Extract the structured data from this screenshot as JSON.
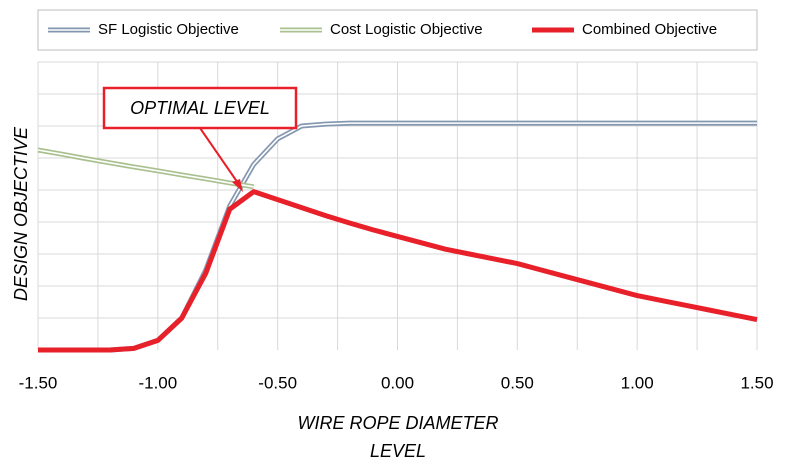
{
  "chart_data": {
    "type": "line",
    "x": [
      -1.5,
      -1.4,
      -1.3,
      -1.2,
      -1.1,
      -1.0,
      -0.9,
      -0.8,
      -0.7,
      -0.6,
      -0.5,
      -0.4,
      -0.3,
      -0.2,
      -0.1,
      0.0,
      0.1,
      0.2,
      0.3,
      0.4,
      0.5,
      0.6,
      0.7,
      0.8,
      0.9,
      1.0,
      1.1,
      1.2,
      1.3,
      1.4,
      1.5
    ],
    "series": [
      {
        "name": "SF Logistic Objective",
        "color": "#8497b0",
        "values": [
          0,
          0,
          0,
          0,
          0.05,
          0.3,
          1.0,
          2.5,
          4.5,
          5.8,
          6.6,
          7.0,
          7.06,
          7.09,
          7.09,
          7.09,
          7.09,
          7.09,
          7.09,
          7.09,
          7.09,
          7.09,
          7.09,
          7.09,
          7.09,
          7.09,
          7.09,
          7.09,
          7.09,
          7.09,
          7.09
        ]
      },
      {
        "name": "Cost Logistic Objective",
        "color": "#a9c08f",
        "values": [
          6.25,
          6.12,
          5.98,
          5.85,
          5.72,
          5.6,
          5.47,
          5.35,
          5.22,
          5.1,
          null,
          null,
          null,
          null,
          null,
          null,
          null,
          null,
          null,
          null,
          null,
          null,
          null,
          null,
          null,
          null,
          null,
          null,
          null,
          null,
          null
        ]
      },
      {
        "name": "Combined Objective",
        "color": "#e8202a",
        "values": [
          0,
          0,
          0,
          0,
          0.05,
          0.3,
          1.0,
          2.4,
          4.4,
          4.95,
          4.7,
          4.45,
          4.2,
          3.97,
          3.75,
          3.55,
          3.35,
          3.15,
          3.0,
          2.85,
          2.7,
          2.5,
          2.3,
          2.1,
          1.9,
          1.7,
          1.55,
          1.4,
          1.25,
          1.1,
          0.95
        ]
      }
    ],
    "xlim": [
      -1.5,
      1.5
    ],
    "xticks": [
      {
        "value": -1.5,
        "label": "-1.50"
      },
      {
        "value": -1.0,
        "label": "-1.00"
      },
      {
        "value": -0.5,
        "label": "-0.50"
      },
      {
        "value": 0,
        "label": "0.00"
      },
      {
        "value": 0.5,
        "label": "0.50"
      },
      {
        "value": 1.0,
        "label": "1.00"
      },
      {
        "value": 1.5,
        "label": "1.50"
      }
    ],
    "xgrid": [
      -1.25,
      -1.0,
      -0.75,
      -0.5,
      -0.25,
      0,
      0.25,
      0.5,
      0.75,
      1.0,
      1.25,
      1.5
    ],
    "ylim": [
      0,
      9
    ],
    "ygrid": [
      1,
      2,
      3,
      4,
      5,
      6,
      7,
      8,
      9
    ],
    "ylabel": "DESIGN OBJECTIVE",
    "xlabel": [
      "WIRE ROPE DIAMETER",
      "LEVEL"
    ],
    "annotation": "OPTIMAL LEVEL"
  }
}
